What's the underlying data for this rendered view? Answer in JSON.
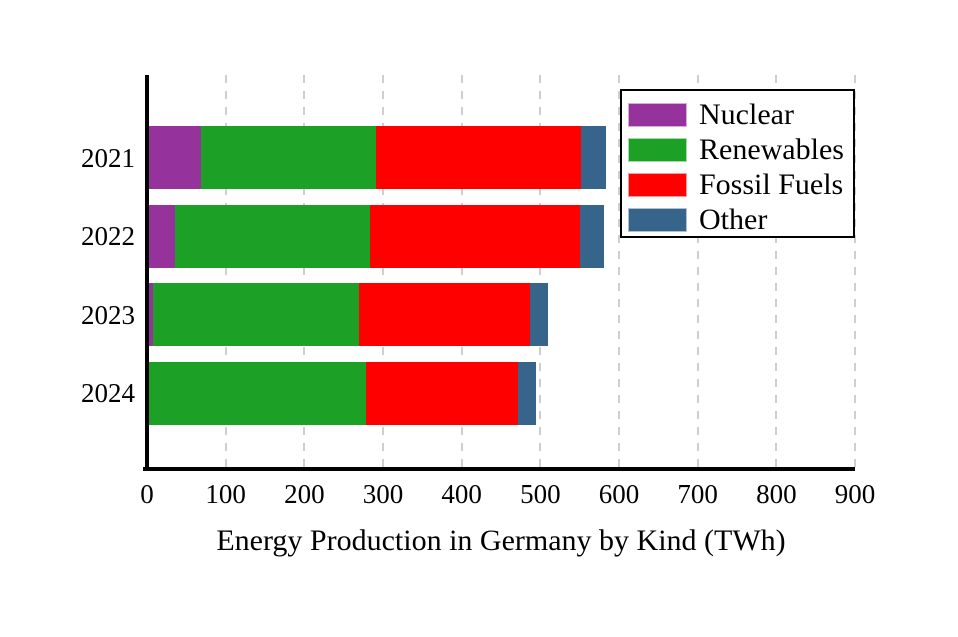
{
  "chart_data": {
    "type": "bar",
    "orientation": "horizontal",
    "stacked": true,
    "title": "Energy Production in Germany by Kind (TWh)",
    "categories": [
      "2021",
      "2022",
      "2023",
      "2024"
    ],
    "series": [
      {
        "name": "Nuclear",
        "color": "#96329b",
        "values": [
          69,
          35,
          7,
          0
        ]
      },
      {
        "name": "Renewables",
        "color": "#1ca126",
        "values": [
          222,
          249,
          263,
          279
        ]
      },
      {
        "name": "Fossil Fuels",
        "color": "#ff0000",
        "values": [
          261,
          266,
          217,
          193
        ]
      },
      {
        "name": "Other",
        "color": "#36648b",
        "values": [
          31,
          31,
          23,
          23
        ]
      }
    ],
    "totals": [
      583,
      581,
      510,
      495
    ],
    "xlabel": "",
    "ylabel": "",
    "xlim": [
      0,
      900
    ],
    "x_ticks": [
      0,
      100,
      200,
      300,
      400,
      500,
      600,
      700,
      800,
      900
    ],
    "grid": "vertical dashed",
    "legend_position": "upper right",
    "legend_entries": [
      "Nuclear",
      "Renewables",
      "Fossil Fuels",
      "Other"
    ]
  },
  "colors": {
    "background": "#ffffff",
    "axis": "#000000",
    "grid": "#cccccc",
    "text": "#000000"
  }
}
